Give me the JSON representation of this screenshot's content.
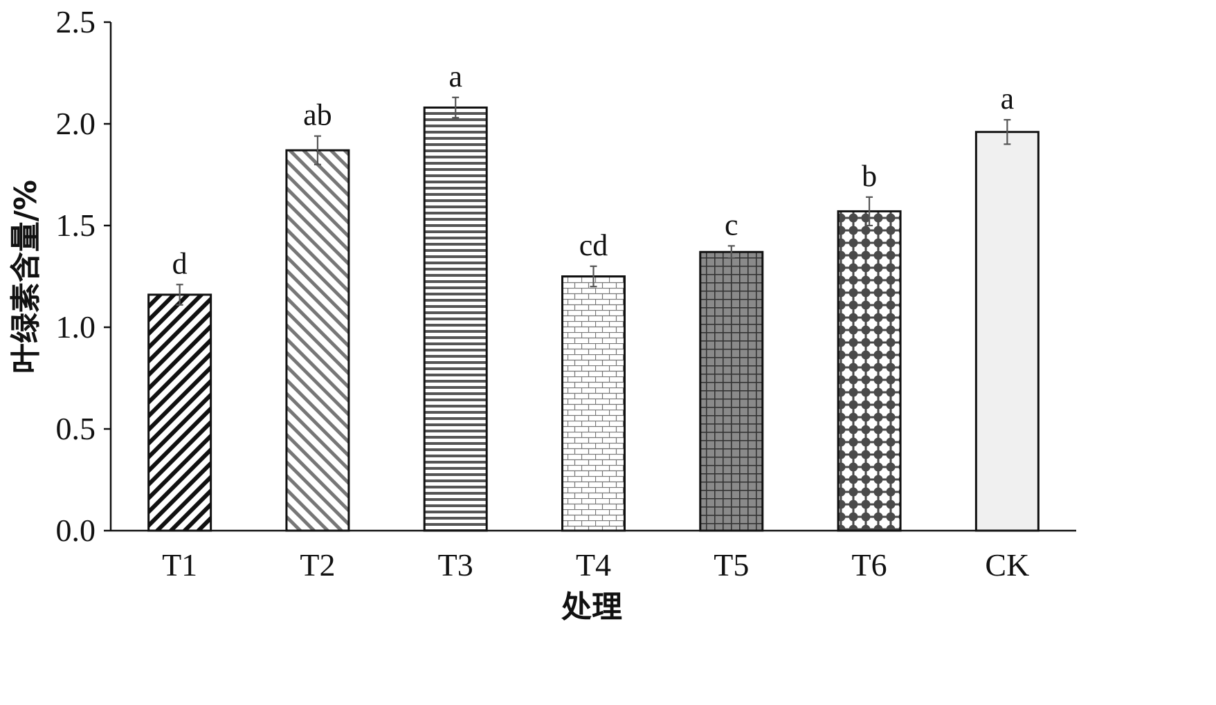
{
  "chart_data": {
    "type": "bar",
    "xlabel": "处理",
    "ylabel": "叶绿素含量/%",
    "ylim": [
      0,
      2.5
    ],
    "yticks": [
      "0.0",
      "0.5",
      "1.0",
      "1.5",
      "2.0",
      "2.5"
    ],
    "categories": [
      "T1",
      "T2",
      "T3",
      "T4",
      "T5",
      "T6",
      "CK"
    ],
    "values": [
      1.16,
      1.87,
      2.08,
      1.25,
      1.37,
      1.57,
      1.96
    ],
    "errors": [
      0.05,
      0.07,
      0.05,
      0.05,
      0.03,
      0.07,
      0.06
    ],
    "significance": [
      "d",
      "ab",
      "a",
      "cd",
      "c",
      "b",
      "a"
    ],
    "patterns": [
      "diag-dense",
      "diag-light",
      "horizontal",
      "brick",
      "grid",
      "dots",
      "solid-light"
    ],
    "grid": false,
    "legend": "none"
  }
}
